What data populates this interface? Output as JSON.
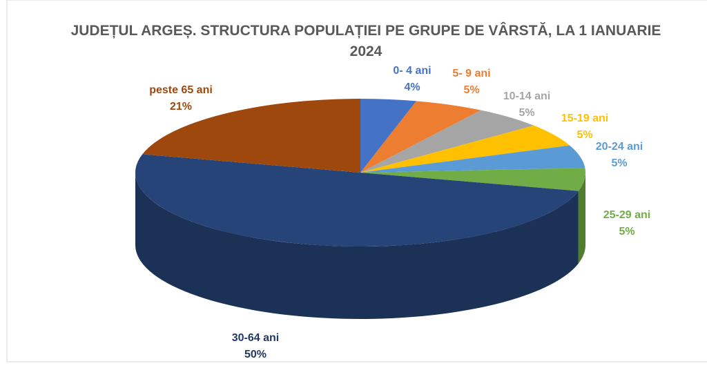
{
  "chart_data": {
    "type": "pie3d",
    "title": "JUDEȚUL ARGEȘ. STRUCTURA POPULAȚIEI PE GRUPE DE VÂRSTĂ, LA 1 IANUARIE 2024",
    "categories": [
      "0- 4 ani",
      "5- 9 ani",
      "10-14 ani",
      "15-19 ani",
      "20-24 ani",
      "25-29 ani",
      "30-64 ani",
      "peste 65 ani"
    ],
    "values": [
      4,
      5,
      5,
      5,
      5,
      5,
      50,
      21
    ],
    "value_labels": [
      "4%",
      "5%",
      "5%",
      "5%",
      "5%",
      "5%",
      "50%",
      "21%"
    ],
    "colors": [
      "#4472c4",
      "#ed7d31",
      "#a5a5a5",
      "#ffc000",
      "#5b9bd5",
      "#70ad47",
      "#264478",
      "#9e480e"
    ]
  }
}
